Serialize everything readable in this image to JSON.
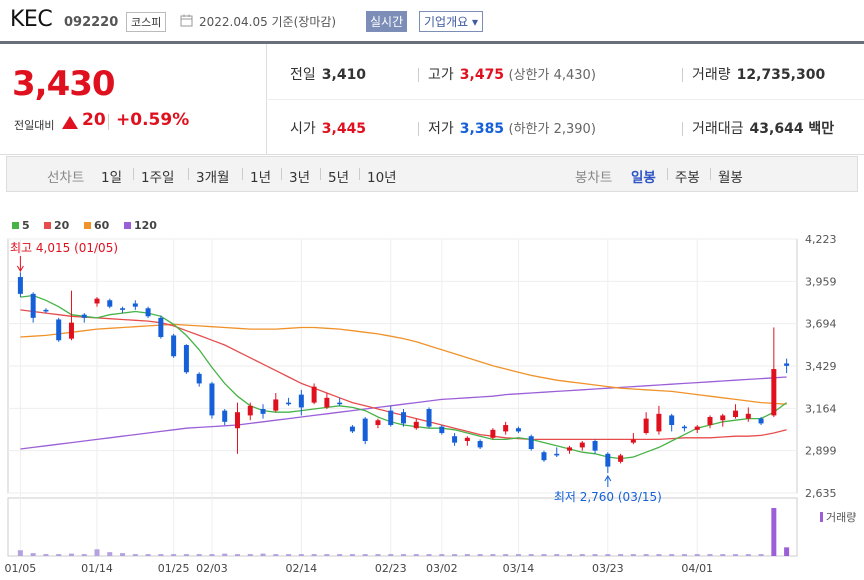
{
  "header": {
    "name": "KEC",
    "code": "092220",
    "market": "코스피",
    "date": "2022.04.05 기준(장마감)",
    "realtime": "실시간",
    "corp_info": "기업개요 ▾"
  },
  "quote": {
    "price": "3,430",
    "change_label": "전일대비",
    "change": "20",
    "change_pct": "+0.59%",
    "prev_close_label": "전일",
    "prev_close": "3,410",
    "open_label": "시가",
    "open": "3,445",
    "high_label": "고가",
    "high": "3,475",
    "upper_limit": "(상한가 4,430)",
    "low_label": "저가",
    "low": "3,385",
    "lower_limit": "(하한가 2,390)",
    "volume_label": "거래량",
    "volume": "12,735,300",
    "amount_label": "거래대금",
    "amount": "43,644 백만",
    "colors": {
      "up": "#e0111f",
      "down": "#1560d8"
    }
  },
  "tabs": {
    "line_label": "선차트",
    "line_items": [
      "1일",
      "1주일",
      "3개월",
      "1년",
      "3년",
      "5년",
      "10년"
    ],
    "candle_label": "봉차트",
    "candle_items": [
      "일봉",
      "주봉",
      "월봉"
    ],
    "candle_selected": 0
  },
  "chart_data": {
    "type": "candlestick",
    "legend": [
      {
        "name": "5",
        "color": "#46b347"
      },
      {
        "name": "20",
        "color": "#e74c4c"
      },
      {
        "name": "60",
        "color": "#f0922a"
      },
      {
        "name": "120",
        "color": "#9b5fd8"
      }
    ],
    "y_ticks": [
      "4,223",
      "3,959",
      "3,694",
      "3,429",
      "3,164",
      "2,899",
      "2,635"
    ],
    "ylim": [
      2635,
      4223
    ],
    "x_ticks": [
      {
        "i": 0,
        "label": "01/05"
      },
      {
        "i": 6,
        "label": "01/14"
      },
      {
        "i": 12,
        "label": "01/25"
      },
      {
        "i": 15,
        "label": "02/03"
      },
      {
        "i": 22,
        "label": "02/14"
      },
      {
        "i": 29,
        "label": "02/23"
      },
      {
        "i": 33,
        "label": "03/02"
      },
      {
        "i": 39,
        "label": "03/14"
      },
      {
        "i": 46,
        "label": "03/23"
      },
      {
        "i": 53,
        "label": "04/01"
      }
    ],
    "max_label": "최고 4,015 (01/05)",
    "min_label": "최저 2,760 (03/15)",
    "volume_legend": "거래량",
    "candles": [
      [
        3985,
        4015,
        3860,
        3880
      ],
      [
        3880,
        3890,
        3700,
        3730
      ],
      [
        3780,
        3790,
        3760,
        3770
      ],
      [
        3720,
        3730,
        3580,
        3590
      ],
      [
        3600,
        3900,
        3590,
        3700
      ],
      [
        3750,
        3760,
        3700,
        3730
      ],
      [
        3820,
        3860,
        3800,
        3850
      ],
      [
        3840,
        3850,
        3790,
        3800
      ],
      [
        3790,
        3800,
        3760,
        3780
      ],
      [
        3820,
        3840,
        3780,
        3800
      ],
      [
        3790,
        3800,
        3730,
        3740
      ],
      [
        3730,
        3745,
        3600,
        3610
      ],
      [
        3620,
        3630,
        3480,
        3490
      ],
      [
        3560,
        3565,
        3380,
        3390
      ],
      [
        3380,
        3390,
        3300,
        3320
      ],
      [
        3320,
        3330,
        3100,
        3120
      ],
      [
        3150,
        3160,
        3060,
        3080
      ],
      [
        3040,
        3200,
        2880,
        3140
      ],
      [
        3120,
        3200,
        3090,
        3180
      ],
      [
        3160,
        3190,
        3100,
        3130
      ],
      [
        3150,
        3260,
        3140,
        3220
      ],
      [
        3200,
        3230,
        3180,
        3190
      ],
      [
        3250,
        3280,
        3120,
        3170
      ],
      [
        3200,
        3320,
        3190,
        3300
      ],
      [
        3170,
        3260,
        3160,
        3230
      ],
      [
        3200,
        3230,
        3180,
        3190
      ],
      [
        3050,
        3060,
        3010,
        3020
      ],
      [
        3100,
        3110,
        2940,
        2960
      ],
      [
        3060,
        3100,
        3040,
        3090
      ],
      [
        3150,
        3180,
        3050,
        3060
      ],
      [
        3140,
        3160,
        3050,
        3070
      ],
      [
        3040,
        3100,
        3030,
        3080
      ],
      [
        3160,
        3170,
        3040,
        3050
      ],
      [
        3050,
        3060,
        3000,
        3010
      ],
      [
        2990,
        3010,
        2930,
        2950
      ],
      [
        2960,
        2990,
        2930,
        2980
      ],
      [
        2960,
        2970,
        2910,
        2920
      ],
      [
        2980,
        3040,
        2970,
        3030
      ],
      [
        3020,
        3080,
        3000,
        3060
      ],
      [
        3040,
        3050,
        3010,
        3020
      ],
      [
        2990,
        3000,
        2900,
        2910
      ],
      [
        2890,
        2900,
        2830,
        2840
      ],
      [
        2880,
        2920,
        2860,
        2870
      ],
      [
        2900,
        2930,
        2880,
        2920
      ],
      [
        2920,
        2960,
        2900,
        2950
      ],
      [
        2960,
        2970,
        2880,
        2900
      ],
      [
        2880,
        2890,
        2760,
        2800
      ],
      [
        2830,
        2880,
        2820,
        2870
      ],
      [
        2950,
        3010,
        2940,
        2970
      ],
      [
        3010,
        3140,
        3000,
        3100
      ],
      [
        3020,
        3180,
        3000,
        3130
      ],
      [
        3120,
        3130,
        3020,
        3060
      ],
      [
        3050,
        3060,
        3020,
        3040
      ],
      [
        3030,
        3060,
        3010,
        3050
      ],
      [
        3060,
        3120,
        3040,
        3110
      ],
      [
        3090,
        3130,
        3050,
        3120
      ],
      [
        3110,
        3190,
        3100,
        3150
      ],
      [
        3100,
        3170,
        3080,
        3130
      ],
      [
        3100,
        3110,
        3060,
        3070
      ],
      [
        3120,
        3670,
        3110,
        3410
      ],
      [
        3445,
        3475,
        3385,
        3430
      ]
    ],
    "volumes": [
      12,
      6,
      4,
      4,
      5,
      4,
      14,
      8,
      6,
      4,
      4,
      4,
      4,
      4,
      4,
      4,
      5,
      4,
      4,
      5,
      4,
      4,
      4,
      4,
      4,
      4,
      4,
      4,
      4,
      4,
      4,
      4,
      4,
      4,
      4,
      4,
      4,
      4,
      4,
      4,
      4,
      4,
      4,
      4,
      4,
      4,
      4,
      4,
      4,
      4,
      4,
      4,
      4,
      4,
      4,
      4,
      4,
      4,
      4,
      100,
      18
    ],
    "ma5": [
      3860,
      3870,
      3840,
      3800,
      3750,
      3740,
      3730,
      3750,
      3760,
      3770,
      3760,
      3740,
      3690,
      3620,
      3530,
      3420,
      3320,
      3240,
      3180,
      3150,
      3140,
      3140,
      3150,
      3160,
      3170,
      3180,
      3170,
      3150,
      3110,
      3080,
      3060,
      3050,
      3040,
      3040,
      3030,
      3010,
      2990,
      2970,
      2970,
      2980,
      2970,
      2950,
      2930,
      2910,
      2890,
      2880,
      2860,
      2850,
      2860,
      2890,
      2920,
      2960,
      3000,
      3040,
      3060,
      3080,
      3090,
      3100,
      3100,
      3140,
      3200
    ],
    "ma20": [
      3780,
      3770,
      3760,
      3750,
      3740,
      3735,
      3730,
      3725,
      3720,
      3715,
      3710,
      3700,
      3680,
      3650,
      3620,
      3590,
      3560,
      3520,
      3480,
      3440,
      3400,
      3360,
      3320,
      3290,
      3260,
      3230,
      3200,
      3180,
      3160,
      3140,
      3120,
      3100,
      3080,
      3060,
      3040,
      3020,
      3000,
      2990,
      2980,
      2975,
      2970,
      2970,
      2970,
      2970,
      2970,
      2970,
      2970,
      2970,
      2970,
      2970,
      2970,
      2975,
      2980,
      2980,
      2980,
      2985,
      2990,
      2990,
      2995,
      3010,
      3030
    ],
    "ma60": [
      3610,
      3615,
      3620,
      3630,
      3640,
      3650,
      3660,
      3665,
      3670,
      3675,
      3680,
      3685,
      3690,
      3685,
      3680,
      3675,
      3670,
      3665,
      3660,
      3660,
      3660,
      3665,
      3670,
      3670,
      3665,
      3660,
      3650,
      3640,
      3630,
      3615,
      3600,
      3580,
      3555,
      3530,
      3505,
      3480,
      3455,
      3430,
      3410,
      3390,
      3370,
      3355,
      3340,
      3330,
      3320,
      3310,
      3300,
      3290,
      3285,
      3280,
      3275,
      3270,
      3260,
      3250,
      3240,
      3230,
      3220,
      3210,
      3200,
      3195,
      3190
    ],
    "ma120": [
      2910,
      2920,
      2930,
      2940,
      2950,
      2960,
      2970,
      2980,
      2990,
      3000,
      3010,
      3020,
      3030,
      3040,
      3045,
      3050,
      3055,
      3060,
      3070,
      3080,
      3090,
      3100,
      3110,
      3120,
      3130,
      3140,
      3150,
      3160,
      3170,
      3180,
      3190,
      3200,
      3210,
      3220,
      3225,
      3230,
      3235,
      3240,
      3250,
      3255,
      3260,
      3265,
      3270,
      3275,
      3280,
      3285,
      3290,
      3295,
      3300,
      3305,
      3310,
      3315,
      3320,
      3325,
      3330,
      3335,
      3340,
      3345,
      3350,
      3355,
      3360
    ]
  }
}
